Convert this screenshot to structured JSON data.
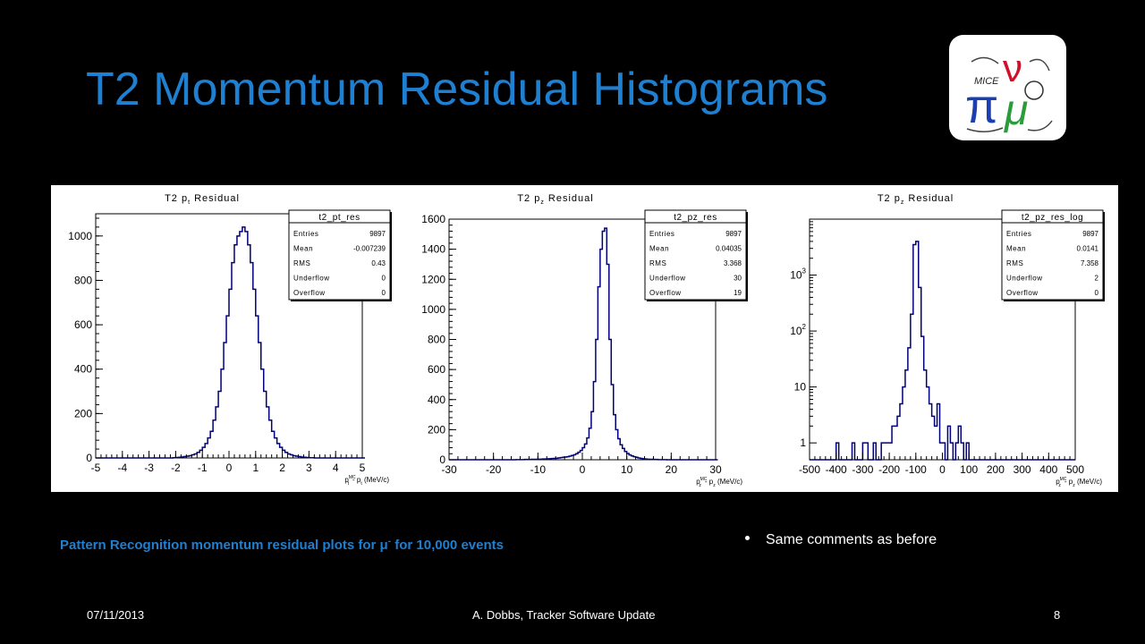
{
  "title": "T2 Momentum Residual Histograms",
  "caption": {
    "prefix": "Pattern Recognition momentum residual plots for μ",
    "sup": "-",
    "suffix": " for 10,000 events"
  },
  "bullets": [
    "Same comments as before"
  ],
  "footer": {
    "date": "07/11/2013",
    "center": "A. Dobbs, Tracker Software Update",
    "page": "8"
  },
  "logo": {
    "icon": "mice-logo-icon",
    "text": "MICE"
  },
  "colors": {
    "title": "#1f7fd0",
    "line": "#00007a",
    "background": "#000000"
  },
  "chart_data": [
    {
      "type": "histogram",
      "title": "T2 p_t Residual",
      "xlabel": "p_t^MC - p_t (MeV/c)",
      "xlim": [
        -5,
        5
      ],
      "ylim": [
        0,
        1100
      ],
      "xticks": [
        -5,
        -4,
        -3,
        -2,
        -1,
        0,
        1,
        2,
        3,
        4,
        5
      ],
      "yticks": [
        0,
        200,
        400,
        600,
        800,
        1000
      ],
      "bin_width": 0.1,
      "x_start": -5,
      "values": [
        0,
        0,
        0,
        0,
        0,
        0,
        0,
        0,
        0,
        0,
        0,
        0,
        0,
        0,
        0,
        0,
        0,
        0,
        0,
        0,
        0,
        0,
        0,
        0,
        0,
        0,
        0,
        0,
        0,
        1,
        2,
        3,
        4,
        6,
        8,
        10,
        14,
        18,
        25,
        35,
        48,
        65,
        90,
        120,
        170,
        230,
        300,
        400,
        520,
        640,
        760,
        880,
        960,
        1000,
        1020,
        1040,
        1020,
        960,
        880,
        760,
        640,
        520,
        400,
        300,
        230,
        170,
        120,
        90,
        65,
        48,
        35,
        25,
        18,
        14,
        10,
        8,
        6,
        4,
        3,
        2,
        1,
        1,
        0,
        0,
        0,
        0,
        0,
        0,
        0,
        0,
        0,
        0,
        0,
        0,
        0,
        0,
        0,
        0,
        0,
        0,
        0,
        0
      ],
      "stats": {
        "name": "t2_pt_res",
        "rows": [
          [
            "Entries",
            "9897"
          ],
          [
            "Mean",
            "-0.007239"
          ],
          [
            "RMS",
            "0.43"
          ],
          [
            "Underflow",
            "0"
          ],
          [
            "Overflow",
            "0"
          ]
        ]
      }
    },
    {
      "type": "histogram",
      "title": "T2 p_z Residual",
      "xlabel": "p_z^MC - p_z (MeV/c)",
      "xlim": [
        -30,
        30
      ],
      "ylim": [
        0,
        1600
      ],
      "xticks": [
        -30,
        -20,
        -10,
        0,
        10,
        20,
        30
      ],
      "yticks": [
        0,
        200,
        400,
        600,
        800,
        1000,
        1200,
        1400,
        1600
      ],
      "bin_width": 0.5,
      "x_start": -30,
      "values": [
        0,
        0,
        0,
        0,
        0,
        0,
        0,
        0,
        0,
        0,
        0,
        0,
        0,
        0,
        0,
        0,
        0,
        0,
        0,
        0,
        0,
        0,
        0,
        0,
        0,
        0,
        0,
        0,
        0,
        0,
        1,
        1,
        1,
        1,
        2,
        2,
        2,
        3,
        3,
        3,
        4,
        4,
        5,
        5,
        6,
        7,
        8,
        9,
        10,
        12,
        14,
        16,
        18,
        20,
        24,
        28,
        33,
        40,
        50,
        62,
        80,
        105,
        145,
        210,
        320,
        520,
        800,
        1150,
        1400,
        1520,
        1540,
        1300,
        800,
        500,
        300,
        200,
        140,
        100,
        75,
        55,
        42,
        32,
        25,
        20,
        16,
        12,
        9,
        7,
        5,
        4,
        3,
        3,
        2,
        2,
        1,
        1,
        1,
        1,
        0,
        0,
        0,
        0,
        0,
        0,
        0,
        0,
        0,
        0,
        0,
        0,
        0,
        0,
        0,
        0,
        0,
        0,
        0,
        0,
        0,
        0,
        0,
        0
      ],
      "stats": {
        "name": "t2_pz_res",
        "rows": [
          [
            "Entries",
            "9897"
          ],
          [
            "Mean",
            "0.04035"
          ],
          [
            "RMS",
            "3.368"
          ],
          [
            "Underflow",
            "30"
          ],
          [
            "Overflow",
            "19"
          ]
        ]
      }
    },
    {
      "type": "histogram",
      "title": "T2 p_z Residual",
      "xlabel": "p_z^MC - p_z (MeV/c)",
      "xlim": [
        -500,
        500
      ],
      "ylim": [
        0.5,
        10000
      ],
      "log_y": true,
      "xticks": [
        -500,
        -400,
        -300,
        -200,
        -100,
        0,
        100,
        200,
        300,
        400,
        500
      ],
      "yticks": [
        1,
        10,
        100,
        1000
      ],
      "ytick_labels": [
        "1",
        "10",
        "10^2",
        "10^3"
      ],
      "bin_width": 10,
      "x_start": -500,
      "values": [
        0,
        0,
        0,
        0,
        0,
        0,
        0,
        0,
        0,
        0,
        1,
        0,
        0,
        0,
        0,
        0,
        1,
        0,
        0,
        0,
        1,
        1,
        0,
        0,
        1,
        0,
        0,
        1,
        1,
        1,
        1,
        2,
        2,
        3,
        5,
        10,
        20,
        50,
        200,
        3500,
        4000,
        600,
        80,
        20,
        10,
        5,
        3,
        2,
        5,
        1,
        1,
        0,
        2,
        1,
        0,
        1,
        2,
        1,
        0,
        1,
        0,
        0,
        0,
        0,
        0,
        0,
        0,
        0,
        0,
        0,
        0,
        0,
        0,
        0,
        0,
        0,
        0,
        0,
        0,
        0,
        0,
        0,
        0,
        0,
        0,
        0,
        0,
        0,
        0,
        0,
        0,
        0,
        0,
        0,
        0,
        0,
        0,
        0,
        0,
        0
      ],
      "stats": {
        "name": "t2_pz_res_log",
        "rows": [
          [
            "Entries",
            "9897"
          ],
          [
            "Mean",
            "0.0141"
          ],
          [
            "RMS",
            "7.358"
          ],
          [
            "Underflow",
            "2"
          ],
          [
            "Overflow",
            "0"
          ]
        ]
      }
    }
  ]
}
